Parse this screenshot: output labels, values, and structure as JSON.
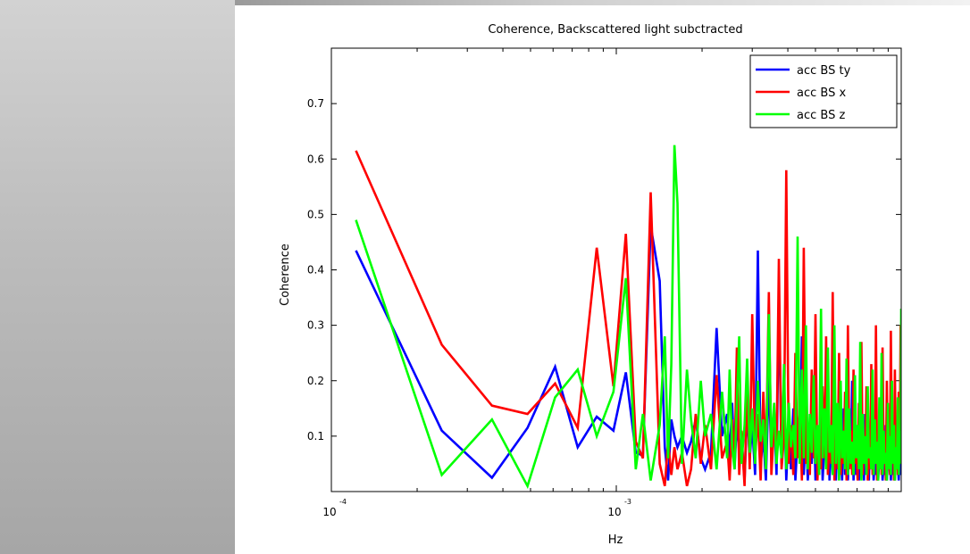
{
  "chart_data": {
    "type": "line",
    "title": "Coherence, Backscattered light subctracted",
    "xlabel": "Hz",
    "ylabel": "Coherence",
    "xscale": "log",
    "xlim": [
      0.0001,
      0.01
    ],
    "ylim": [
      0,
      0.8
    ],
    "yticks": [
      0.1,
      0.2,
      0.3,
      0.4,
      0.5,
      0.6,
      0.7
    ],
    "ytick_labels": [
      "0.1",
      "0.2",
      "0.3",
      "0.4",
      "0.5",
      "0.6",
      "0.7"
    ],
    "xticks": [
      {
        "value": 0.0001,
        "base": "10",
        "exp": "-4"
      },
      {
        "value": 0.001,
        "base": "10",
        "exp": "-3"
      }
    ],
    "grid": false,
    "legend_position": "top-right",
    "colors": {
      "acc_bs_ty": "#0000ff",
      "acc_bs_x": "#ff0000",
      "acc_bs_z": "#00ff00"
    },
    "series": [
      {
        "name": "acc BS ty",
        "color": "#0000ff",
        "x": [
          0.000122,
          0.000244,
          0.000366,
          0.000488,
          0.00061,
          0.000732,
          0.000854,
          0.000977,
          0.00108,
          0.00117,
          0.00124,
          0.00132,
          0.00142,
          0.00148,
          0.00152,
          0.00156,
          0.0016,
          0.00164,
          0.0017,
          0.00177,
          0.00183,
          0.0019,
          0.00198,
          0.00205,
          0.00215,
          0.00225,
          0.00235,
          0.00245,
          0.0025,
          0.00255,
          0.0026,
          0.00265,
          0.0027,
          0.00275,
          0.00282,
          0.00288,
          0.00294,
          0.003,
          0.00307,
          0.00314,
          0.00321,
          0.00328,
          0.00335,
          0.00343,
          0.0035,
          0.00358,
          0.00365,
          0.00372,
          0.0038,
          0.00388,
          0.00395,
          0.00403,
          0.0041,
          0.00418,
          0.00425,
          0.00433,
          0.0044,
          0.00448,
          0.00455,
          0.00463,
          0.0047,
          0.00478,
          0.00485,
          0.00493,
          0.005,
          0.00508,
          0.00515,
          0.00523,
          0.0053,
          0.00538,
          0.00545,
          0.00553,
          0.0056,
          0.00568,
          0.00575,
          0.00583,
          0.0059,
          0.00598,
          0.00605,
          0.00613,
          0.0062,
          0.00628,
          0.00635,
          0.00643,
          0.0065,
          0.00658,
          0.00665,
          0.00673,
          0.0068,
          0.00688,
          0.00695,
          0.00703,
          0.0071,
          0.00718,
          0.00725,
          0.00733,
          0.0074,
          0.00748,
          0.00755,
          0.00763,
          0.0077,
          0.00778,
          0.00785,
          0.00793,
          0.008,
          0.00808,
          0.00815,
          0.00823,
          0.0083,
          0.00838,
          0.00845,
          0.00853,
          0.0086,
          0.00868,
          0.00875,
          0.00883,
          0.0089,
          0.00898,
          0.00905,
          0.00913,
          0.0092,
          0.00928,
          0.00935,
          0.00943,
          0.0095,
          0.00958,
          0.00965,
          0.00973,
          0.0098,
          0.00988,
          0.00995,
          0.01
        ],
        "y": [
          0.435,
          0.11,
          0.025,
          0.115,
          0.225,
          0.08,
          0.135,
          0.11,
          0.215,
          0.07,
          0.065,
          0.48,
          0.38,
          0.08,
          0.02,
          0.13,
          0.1,
          0.08,
          0.1,
          0.07,
          0.09,
          0.13,
          0.06,
          0.04,
          0.07,
          0.295,
          0.1,
          0.14,
          0.06,
          0.16,
          0.04,
          0.13,
          0.07,
          0.1,
          0.02,
          0.15,
          0.06,
          0.12,
          0.03,
          0.435,
          0.05,
          0.1,
          0.02,
          0.21,
          0.06,
          0.14,
          0.03,
          0.36,
          0.05,
          0.19,
          0.02,
          0.12,
          0.04,
          0.15,
          0.02,
          0.1,
          0.06,
          0.28,
          0.03,
          0.12,
          0.02,
          0.08,
          0.05,
          0.16,
          0.02,
          0.1,
          0.03,
          0.18,
          0.02,
          0.09,
          0.06,
          0.24,
          0.02,
          0.11,
          0.03,
          0.07,
          0.02,
          0.13,
          0.04,
          0.09,
          0.02,
          0.15,
          0.03,
          0.06,
          0.02,
          0.1,
          0.05,
          0.2,
          0.02,
          0.08,
          0.03,
          0.12,
          0.02,
          0.06,
          0.04,
          0.09,
          0.02,
          0.14,
          0.03,
          0.07,
          0.02,
          0.11,
          0.05,
          0.08,
          0.02,
          0.06,
          0.03,
          0.1,
          0.02,
          0.07,
          0.04,
          0.09,
          0.02,
          0.05,
          0.03,
          0.12,
          0.02,
          0.06,
          0.04,
          0.08,
          0.02,
          0.07,
          0.03,
          0.05,
          0.02,
          0.09,
          0.04,
          0.06,
          0.02,
          0.08,
          0.03,
          0.05
        ]
      },
      {
        "name": "acc BS x",
        "color": "#ff0000",
        "x": [
          0.000122,
          0.000244,
          0.000366,
          0.000488,
          0.00061,
          0.000732,
          0.000854,
          0.000977,
          0.00108,
          0.00117,
          0.00124,
          0.00132,
          0.00142,
          0.00148,
          0.00152,
          0.00156,
          0.0016,
          0.00164,
          0.0017,
          0.00177,
          0.00183,
          0.0019,
          0.00198,
          0.00205,
          0.00215,
          0.00225,
          0.00235,
          0.00245,
          0.0025,
          0.00255,
          0.0026,
          0.00265,
          0.0027,
          0.00275,
          0.00282,
          0.00288,
          0.00294,
          0.003,
          0.00307,
          0.00314,
          0.00321,
          0.00328,
          0.00335,
          0.00343,
          0.0035,
          0.00358,
          0.00365,
          0.00372,
          0.0038,
          0.00388,
          0.00395,
          0.00403,
          0.0041,
          0.00418,
          0.00425,
          0.00433,
          0.0044,
          0.00448,
          0.00455,
          0.00463,
          0.0047,
          0.00478,
          0.00485,
          0.00493,
          0.005,
          0.00508,
          0.00515,
          0.00523,
          0.0053,
          0.00538,
          0.00545,
          0.00553,
          0.0056,
          0.00568,
          0.00575,
          0.00583,
          0.0059,
          0.00598,
          0.00605,
          0.00613,
          0.0062,
          0.00628,
          0.00635,
          0.00643,
          0.0065,
          0.00658,
          0.00665,
          0.00673,
          0.0068,
          0.00688,
          0.00695,
          0.00703,
          0.0071,
          0.00718,
          0.00725,
          0.00733,
          0.0074,
          0.00748,
          0.00755,
          0.00763,
          0.0077,
          0.00778,
          0.00785,
          0.00793,
          0.008,
          0.00808,
          0.00815,
          0.00823,
          0.0083,
          0.00838,
          0.00845,
          0.00853,
          0.0086,
          0.00868,
          0.00875,
          0.00883,
          0.0089,
          0.00898,
          0.00905,
          0.00913,
          0.0092,
          0.00928,
          0.00935,
          0.00943,
          0.0095,
          0.00958,
          0.00965,
          0.00973,
          0.0098,
          0.00988,
          0.00995,
          0.01
        ],
        "y": [
          0.615,
          0.265,
          0.155,
          0.14,
          0.195,
          0.115,
          0.44,
          0.19,
          0.465,
          0.09,
          0.06,
          0.54,
          0.05,
          0.01,
          0.09,
          0.03,
          0.08,
          0.04,
          0.07,
          0.01,
          0.04,
          0.14,
          0.05,
          0.12,
          0.04,
          0.21,
          0.06,
          0.09,
          0.02,
          0.13,
          0.05,
          0.26,
          0.03,
          0.11,
          0.01,
          0.19,
          0.04,
          0.32,
          0.06,
          0.14,
          0.02,
          0.18,
          0.05,
          0.36,
          0.03,
          0.12,
          0.07,
          0.42,
          0.04,
          0.1,
          0.58,
          0.05,
          0.12,
          0.03,
          0.25,
          0.06,
          0.16,
          0.02,
          0.44,
          0.05,
          0.11,
          0.03,
          0.22,
          0.06,
          0.32,
          0.02,
          0.1,
          0.04,
          0.19,
          0.06,
          0.28,
          0.03,
          0.09,
          0.05,
          0.36,
          0.02,
          0.12,
          0.04,
          0.25,
          0.03,
          0.08,
          0.05,
          0.18,
          0.02,
          0.3,
          0.04,
          0.11,
          0.03,
          0.22,
          0.05,
          0.08,
          0.02,
          0.16,
          0.04,
          0.27,
          0.03,
          0.1,
          0.05,
          0.19,
          0.02,
          0.07,
          0.04,
          0.23,
          0.03,
          0.12,
          0.05,
          0.3,
          0.02,
          0.09,
          0.04,
          0.17,
          0.03,
          0.26,
          0.05,
          0.1,
          0.02,
          0.2,
          0.04,
          0.08,
          0.03,
          0.29,
          0.05,
          0.12,
          0.02,
          0.22,
          0.04,
          0.09,
          0.03,
          0.18,
          0.05,
          0.3,
          0.06
        ]
      },
      {
        "name": "acc BS z",
        "color": "#00ff00",
        "x": [
          0.000122,
          0.000244,
          0.000366,
          0.000488,
          0.00061,
          0.000732,
          0.000854,
          0.000977,
          0.00108,
          0.00117,
          0.00124,
          0.00132,
          0.00142,
          0.00148,
          0.00152,
          0.00156,
          0.0016,
          0.00164,
          0.0017,
          0.00177,
          0.00183,
          0.0019,
          0.00198,
          0.00205,
          0.00215,
          0.00225,
          0.00235,
          0.00245,
          0.0025,
          0.00255,
          0.0026,
          0.00265,
          0.0027,
          0.00275,
          0.00282,
          0.00288,
          0.00294,
          0.003,
          0.00307,
          0.00314,
          0.00321,
          0.00328,
          0.00335,
          0.00343,
          0.0035,
          0.00358,
          0.00365,
          0.00372,
          0.0038,
          0.00388,
          0.00395,
          0.00403,
          0.0041,
          0.00418,
          0.00425,
          0.00433,
          0.0044,
          0.00448,
          0.00455,
          0.00463,
          0.0047,
          0.00478,
          0.00485,
          0.00493,
          0.005,
          0.00508,
          0.00515,
          0.00523,
          0.0053,
          0.00538,
          0.00545,
          0.00553,
          0.0056,
          0.00568,
          0.00575,
          0.00583,
          0.0059,
          0.00598,
          0.00605,
          0.00613,
          0.0062,
          0.00628,
          0.00635,
          0.00643,
          0.0065,
          0.00658,
          0.00665,
          0.00673,
          0.0068,
          0.00688,
          0.00695,
          0.00703,
          0.0071,
          0.00718,
          0.00725,
          0.00733,
          0.0074,
          0.00748,
          0.00755,
          0.00763,
          0.0077,
          0.00778,
          0.00785,
          0.00793,
          0.008,
          0.00808,
          0.00815,
          0.00823,
          0.0083,
          0.00838,
          0.00845,
          0.00853,
          0.0086,
          0.00868,
          0.00875,
          0.00883,
          0.0089,
          0.00898,
          0.00905,
          0.00913,
          0.0092,
          0.00928,
          0.00935,
          0.00943,
          0.0095,
          0.00958,
          0.00965,
          0.00973,
          0.0098,
          0.00988,
          0.00995,
          0.01
        ],
        "y": [
          0.49,
          0.03,
          0.13,
          0.01,
          0.17,
          0.22,
          0.1,
          0.18,
          0.385,
          0.04,
          0.14,
          0.02,
          0.12,
          0.28,
          0.06,
          0.23,
          0.625,
          0.52,
          0.05,
          0.22,
          0.13,
          0.06,
          0.2,
          0.1,
          0.14,
          0.04,
          0.18,
          0.06,
          0.22,
          0.08,
          0.04,
          0.16,
          0.28,
          0.05,
          0.12,
          0.24,
          0.07,
          0.15,
          0.05,
          0.2,
          0.09,
          0.13,
          0.04,
          0.32,
          0.08,
          0.16,
          0.05,
          0.11,
          0.06,
          0.23,
          0.04,
          0.16,
          0.08,
          0.12,
          0.06,
          0.46,
          0.05,
          0.22,
          0.06,
          0.3,
          0.04,
          0.14,
          0.07,
          0.21,
          0.05,
          0.12,
          0.03,
          0.33,
          0.06,
          0.15,
          0.04,
          0.26,
          0.07,
          0.12,
          0.03,
          0.3,
          0.05,
          0.16,
          0.02,
          0.2,
          0.06,
          0.11,
          0.04,
          0.24,
          0.03,
          0.15,
          0.05,
          0.09,
          0.03,
          0.21,
          0.06,
          0.12,
          0.04,
          0.27,
          0.02,
          0.14,
          0.05,
          0.1,
          0.03,
          0.19,
          0.06,
          0.08,
          0.04,
          0.22,
          0.03,
          0.13,
          0.05,
          0.09,
          0.02,
          0.17,
          0.04,
          0.25,
          0.03,
          0.11,
          0.05,
          0.07,
          0.02,
          0.16,
          0.04,
          0.1,
          0.03,
          0.2,
          0.05,
          0.12,
          0.02,
          0.08,
          0.04,
          0.17,
          0.03,
          0.11,
          0.05,
          0.33
        ]
      }
    ]
  }
}
